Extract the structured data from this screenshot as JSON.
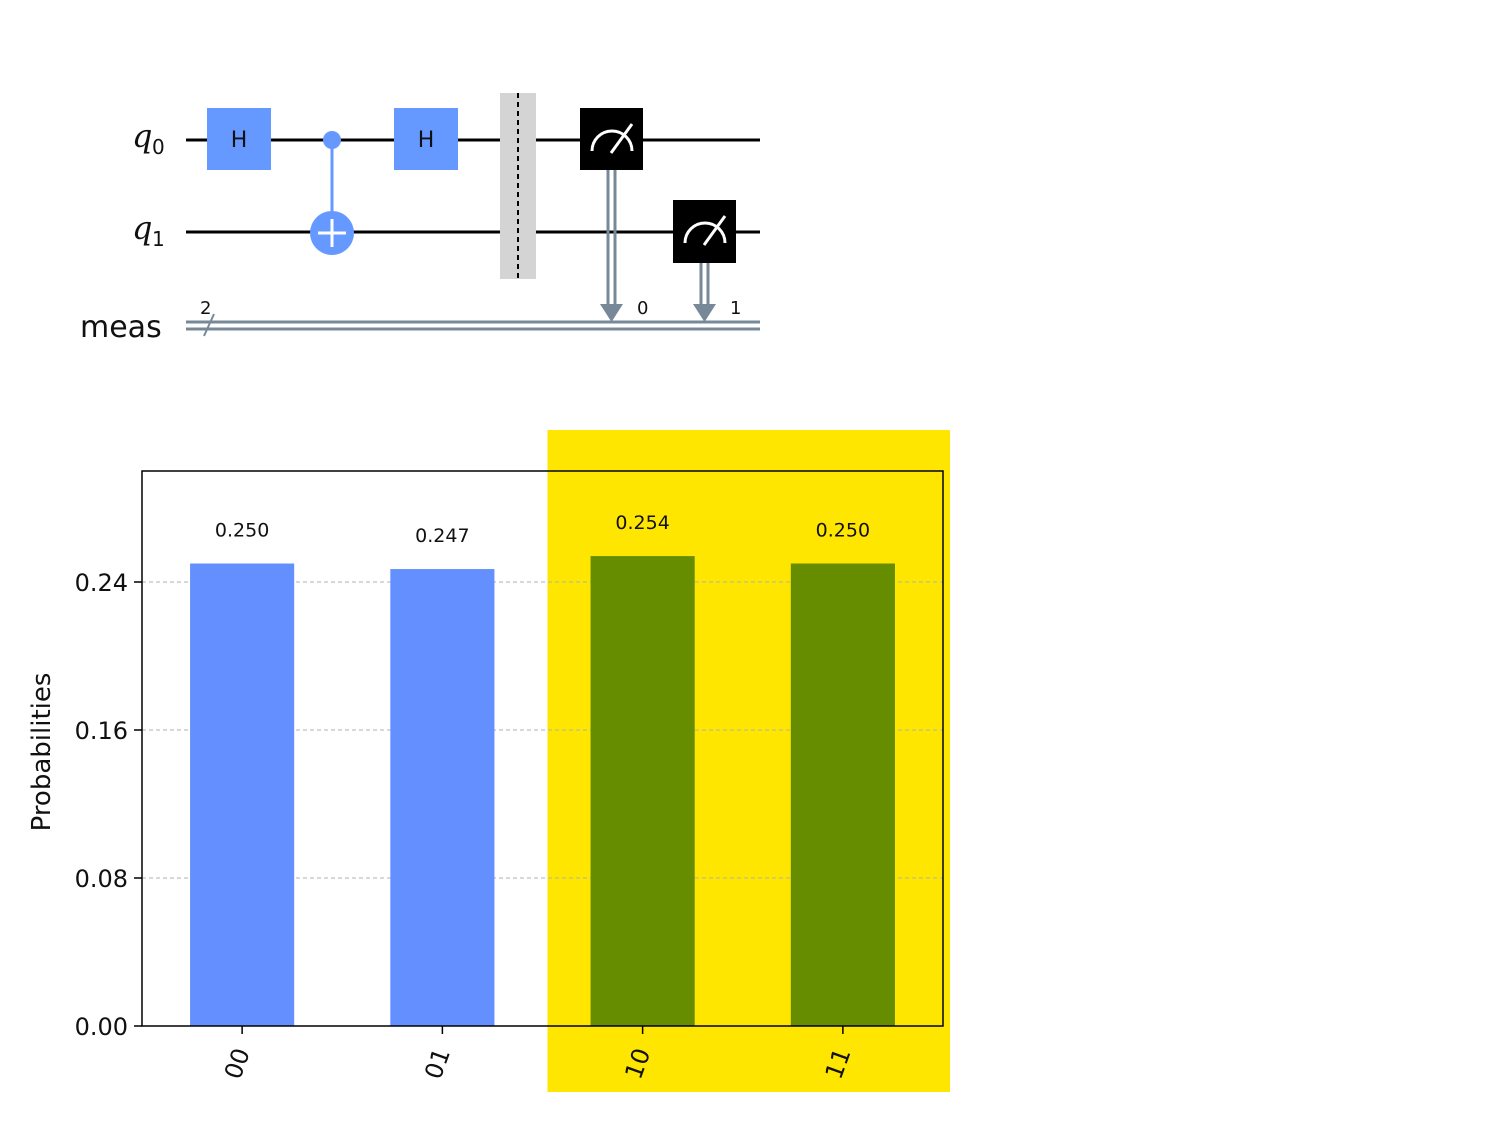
{
  "circuit": {
    "qubits": [
      {
        "name": "q",
        "sub": "0"
      },
      {
        "name": "q",
        "sub": "1"
      }
    ],
    "creg": {
      "name": "meas",
      "size": "2",
      "bits": [
        "0",
        "1"
      ]
    },
    "gates": [
      {
        "type": "H",
        "label": "H",
        "qubit": 0
      },
      {
        "type": "CX",
        "control": 0,
        "target": 1
      },
      {
        "type": "H",
        "label": "H",
        "qubit": 0
      },
      {
        "type": "barrier"
      },
      {
        "type": "measure",
        "qubit": 0,
        "clbit": 0
      },
      {
        "type": "measure",
        "qubit": 1,
        "clbit": 1
      }
    ],
    "colors": {
      "gate": "#6699ff",
      "measure": "#000000",
      "creg": "#778899",
      "barrier": "#bdbdbd"
    }
  },
  "chart_data": {
    "type": "bar",
    "categories": [
      "00",
      "01",
      "10",
      "11"
    ],
    "values": [
      0.25,
      0.247,
      0.254,
      0.25
    ],
    "value_labels": [
      "0.250",
      "0.247",
      "0.254",
      "0.250"
    ],
    "ylabel": "Probabilities",
    "ylim": [
      0,
      0.3
    ],
    "yticks": [
      0.0,
      0.08,
      0.16,
      0.24
    ],
    "ytick_labels": [
      "0.00",
      "0.08",
      "0.16",
      "0.24"
    ],
    "grid": true,
    "colors": [
      "#648fff",
      "#648fff",
      "#668c00",
      "#668c00"
    ],
    "highlight": {
      "categories": [
        "10",
        "11"
      ],
      "color": "#ffe600"
    }
  }
}
